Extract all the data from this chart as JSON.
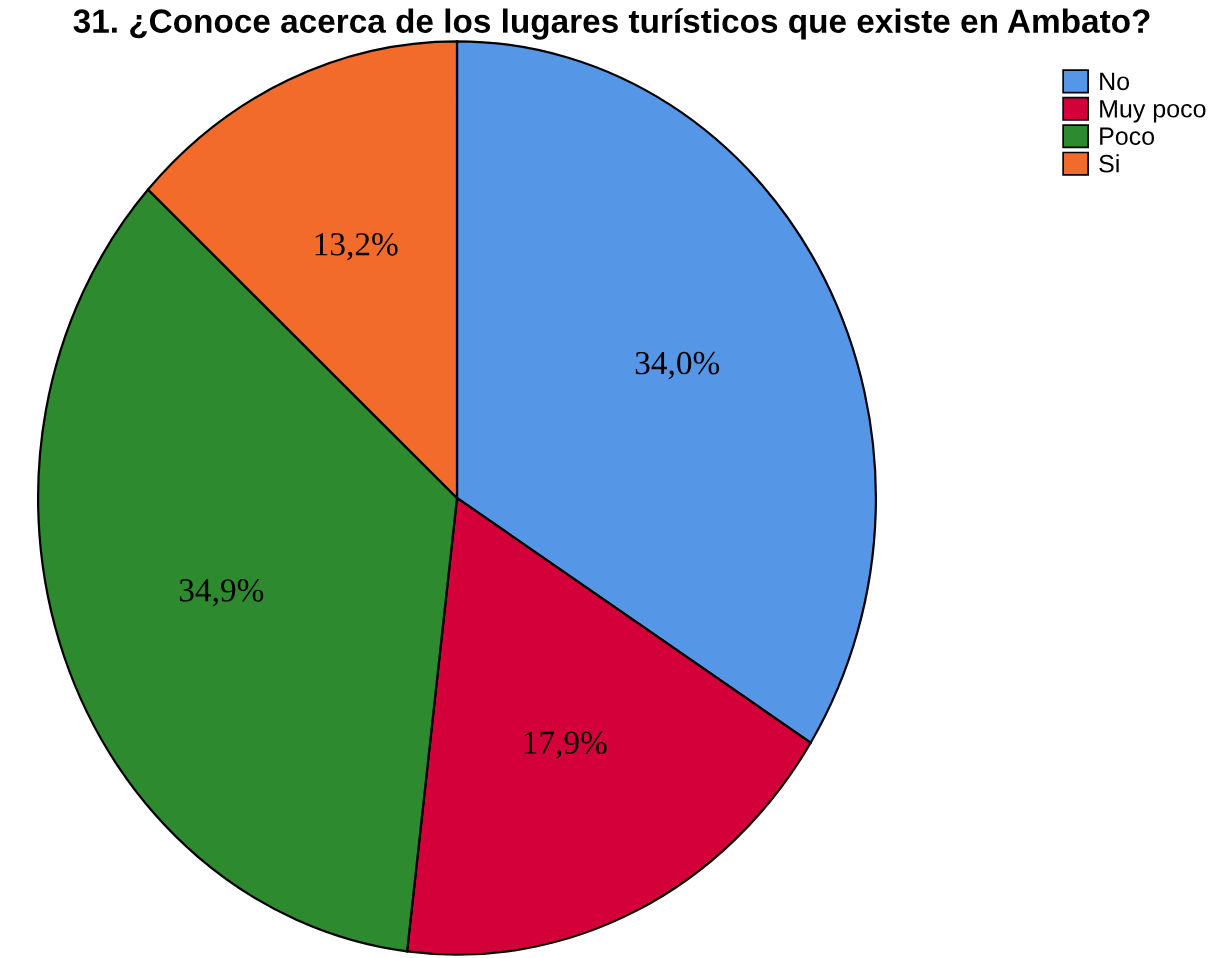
{
  "chart_data": {
    "type": "pie",
    "title": "31. ¿Conoce acerca de los lugares turísticos que existe en Ambato?",
    "categories": [
      "No",
      "Muy poco",
      "Poco",
      "Si"
    ],
    "values": [
      34.0,
      17.9,
      34.9,
      13.2
    ],
    "colors": [
      "#5596e6",
      "#d4003a",
      "#2e8a2e",
      "#f26b2a"
    ],
    "value_labels": [
      "34,0%",
      "17,9%",
      "34,9%",
      "13,2%"
    ],
    "legend": "top right"
  }
}
